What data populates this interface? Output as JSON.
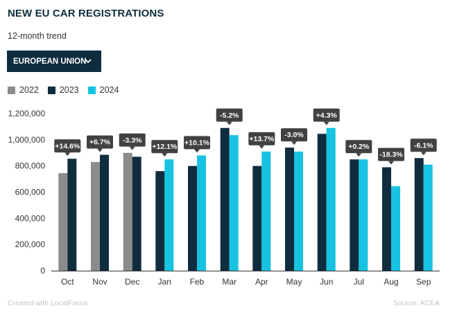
{
  "header": {
    "title": "NEW EU CAR REGISTRATIONS",
    "subtitle": "12-month trend"
  },
  "selector": {
    "value": "EUROPEAN UNION",
    "icon": "chevron-down-icon"
  },
  "colors": {
    "y2022": "#8c8c8c",
    "y2023": "#0f2d3f",
    "y2024": "#17c3e0",
    "label_bg": "#414141",
    "axis": "#333333"
  },
  "footer": {
    "credit": "Created with LocalFocus",
    "source": "Source: ACEA"
  },
  "chart_data": {
    "type": "bar",
    "title": "NEW EU CAR REGISTRATIONS",
    "subtitle": "12-month trend",
    "categories": [
      "Oct",
      "Nov",
      "Dec",
      "Jan",
      "Feb",
      "Mar",
      "Apr",
      "May",
      "Jun",
      "Jul",
      "Aug",
      "Sep"
    ],
    "series": [
      {
        "name": "2022",
        "values": [
          745000,
          830000,
          900000,
          null,
          null,
          null,
          null,
          null,
          null,
          null,
          null,
          null
        ]
      },
      {
        "name": "2023",
        "values": [
          855000,
          885000,
          870000,
          760000,
          800000,
          1090000,
          800000,
          940000,
          1045000,
          850000,
          790000,
          860000
        ]
      },
      {
        "name": "2024",
        "values": [
          null,
          null,
          null,
          850000,
          880000,
          1035000,
          910000,
          910000,
          1090000,
          850000,
          645000,
          810000
        ]
      }
    ],
    "change_labels": [
      "+14.6%",
      "+6.7%",
      "-3.3%",
      "+12.1%",
      "+10.1%",
      "-5.2%",
      "+13.7%",
      "-3.0%",
      "+4.3%",
      "+0.2%",
      "-18.3%",
      "-6.1%"
    ],
    "y_ticks": [
      0,
      200000,
      400000,
      600000,
      800000,
      1000000,
      1200000
    ],
    "y_tick_labels": [
      "0",
      "200,000",
      "400,000",
      "600,000",
      "800,000",
      "1,000,000",
      "1,200,000"
    ],
    "ylim": [
      0,
      1200000
    ],
    "xlabel": "",
    "ylabel": "",
    "grid": false,
    "legend_position": "top-left"
  }
}
